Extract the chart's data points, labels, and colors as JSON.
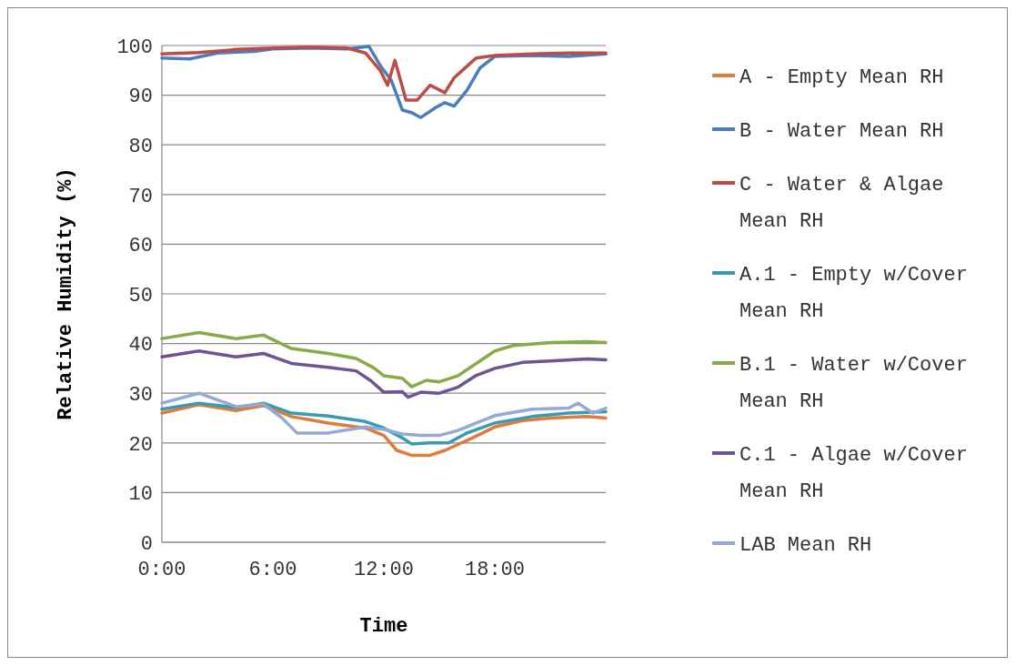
{
  "chart_data": {
    "type": "line",
    "xlabel": "Time",
    "ylabel": "Relative Humidity (%)",
    "xlim": [
      0,
      24
    ],
    "ylim": [
      0,
      100
    ],
    "xticks": [
      {
        "value": 0,
        "label": "0:00"
      },
      {
        "value": 6,
        "label": "6:00"
      },
      {
        "value": 12,
        "label": "12:00"
      },
      {
        "value": 18,
        "label": "18:00"
      }
    ],
    "yticks": [
      0,
      10,
      20,
      30,
      40,
      50,
      60,
      70,
      80,
      90,
      100
    ],
    "grid": "y",
    "legend": "right",
    "marker": "none",
    "line_style": "solid",
    "series": [
      {
        "name": "A - Empty Mean RH",
        "color": "#e07b39",
        "x": [
          0,
          2,
          4,
          5.5,
          7,
          9,
          11,
          12,
          12.7,
          13.5,
          14.5,
          15.3,
          16.5,
          18,
          19.5,
          21,
          23,
          24
        ],
        "values": [
          26,
          27.7,
          26.5,
          27.5,
          25.3,
          24,
          23,
          21.5,
          18.5,
          17.5,
          17.5,
          18.5,
          20.5,
          23.2,
          24.5,
          25,
          25.3,
          25
        ]
      },
      {
        "name": "B - Water Mean RH",
        "color": "#4a7ebb",
        "x": [
          0,
          1.5,
          3,
          5,
          6,
          8,
          10,
          11.2,
          11.8,
          12.4,
          13,
          13.5,
          14,
          14.8,
          15.3,
          15.8,
          16.5,
          17.2,
          18,
          20,
          22,
          24
        ],
        "values": [
          97.5,
          97.3,
          98.5,
          98.8,
          99.3,
          99.5,
          99.3,
          99.8,
          96,
          93,
          87,
          86.5,
          85.5,
          87.5,
          88.5,
          87.8,
          91,
          95.5,
          97.8,
          98,
          97.8,
          98.3
        ]
      },
      {
        "name": "C - Water & Algae Mean RH",
        "color": "#be4b48",
        "x": [
          0,
          2,
          4,
          6,
          8,
          10,
          11,
          11.8,
          12.2,
          12.6,
          13.2,
          13.8,
          14.5,
          15.3,
          15.8,
          17,
          18,
          20,
          22,
          24
        ],
        "values": [
          98.3,
          98.6,
          99.2,
          99.5,
          99.7,
          99.5,
          98.5,
          95,
          92,
          97,
          89,
          89,
          92,
          90.5,
          93.5,
          97.5,
          98,
          98.3,
          98.5,
          98.5
        ]
      },
      {
        "name": "A.1 - Empty w/Cover Mean RH",
        "color": "#3a9ab2",
        "x": [
          0,
          2,
          4,
          5.5,
          7,
          9,
          11,
          12,
          13,
          13.5,
          14.5,
          15.5,
          16.5,
          18,
          20,
          22,
          24
        ],
        "values": [
          26.8,
          28,
          27.1,
          28,
          26,
          25.4,
          24.3,
          23,
          21,
          19.8,
          20,
          20,
          22,
          24,
          25.3,
          26,
          26.3
        ]
      },
      {
        "name": "B.1 - Water w/Cover Mean RH",
        "color": "#8aaa4a",
        "x": [
          0,
          2,
          4,
          5.5,
          7,
          9,
          10.5,
          11.5,
          12,
          13,
          13.5,
          14.3,
          15,
          16,
          17,
          18,
          19,
          21,
          23,
          24
        ],
        "values": [
          41,
          42.2,
          41,
          41.7,
          39,
          38,
          37,
          35,
          33.5,
          33,
          31.3,
          32.6,
          32.3,
          33.5,
          36,
          38.5,
          39.6,
          40.2,
          40.4,
          40.2
        ]
      },
      {
        "name": "C.1 - Algae w/Cover Mean RH",
        "color": "#6e5494",
        "x": [
          0,
          2,
          4,
          5.5,
          7,
          9,
          10.5,
          11.3,
          12,
          13,
          13.3,
          14,
          15,
          16,
          17,
          18,
          19.5,
          21,
          23,
          24
        ],
        "values": [
          37.3,
          38.5,
          37.3,
          38,
          36,
          35.2,
          34.5,
          32.5,
          30.2,
          30.3,
          29.2,
          30.2,
          30,
          31.2,
          33.6,
          35,
          36.2,
          36.5,
          36.9,
          36.7
        ]
      },
      {
        "name": "LAB Mean RH",
        "color": "#93aad4",
        "x": [
          0,
          2,
          4,
          5.5,
          6.5,
          7.3,
          9,
          11,
          12,
          13,
          14,
          15,
          16,
          17,
          18,
          20,
          22,
          22.5,
          23.3,
          24
        ],
        "values": [
          28,
          30,
          27.3,
          27.8,
          25,
          22,
          22,
          23.2,
          22.7,
          21.8,
          21.5,
          21.5,
          22.5,
          24,
          25.5,
          26.8,
          27,
          28,
          26,
          27
        ]
      }
    ]
  }
}
